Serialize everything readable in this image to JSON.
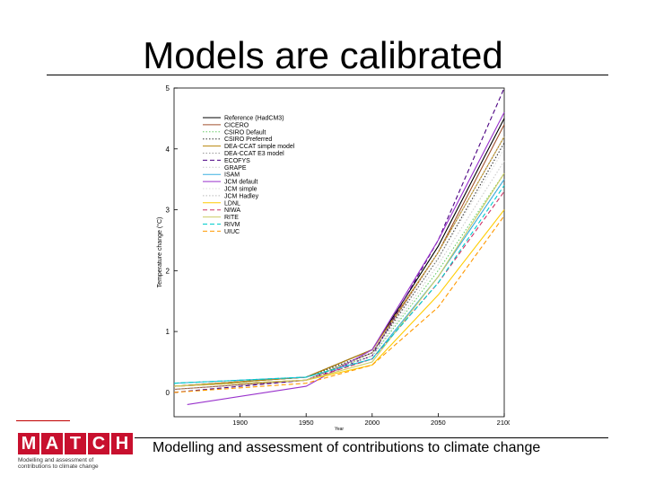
{
  "slide": {
    "title": "Models are calibrated",
    "footer": "Modelling and assessment of contributions to climate change"
  },
  "logo": {
    "letters": [
      "M",
      "A",
      "T",
      "C",
      "H"
    ],
    "line1": "Modelling and assessment of",
    "line2": "contributions to climate change",
    "color": "#c8102e"
  },
  "chart_data": {
    "type": "line",
    "title": "",
    "xlabel": "Year",
    "ylabel": "Temperature change (°C)",
    "xlim": [
      1850,
      2100
    ],
    "ylim": [
      -0.4,
      5
    ],
    "xticks": [
      1900,
      1950,
      2000,
      2050,
      2100
    ],
    "yticks": [
      0,
      1,
      2,
      3,
      4,
      5
    ],
    "grid": false,
    "legend_position": "top-left",
    "series": [
      {
        "name": "Reference (HadCM3)",
        "color": "#000000",
        "dash": "solid",
        "x": [
          1850,
          1950,
          2000,
          2050,
          2100
        ],
        "y": [
          0.1,
          0.25,
          0.7,
          2.4,
          4.5
        ]
      },
      {
        "name": "CICERO",
        "color": "#a0522d",
        "dash": "solid",
        "x": [
          1850,
          1950,
          2000,
          2050,
          2100
        ],
        "y": [
          0.05,
          0.2,
          0.65,
          2.3,
          4.4
        ]
      },
      {
        "name": "CSIRO Default",
        "color": "#66cc66",
        "dash": "dotted",
        "x": [
          1850,
          1950,
          2000,
          2050,
          2100
        ],
        "y": [
          0.15,
          0.25,
          0.6,
          2.0,
          3.6
        ]
      },
      {
        "name": "CSIRO Preferred",
        "color": "#333333",
        "dash": "dotted",
        "x": [
          1850,
          1950,
          2000,
          2050,
          2100
        ],
        "y": [
          0.1,
          0.25,
          0.65,
          2.2,
          4.1
        ]
      },
      {
        "name": "DEA-CCAT simple model",
        "color": "#b8860b",
        "dash": "solid",
        "x": [
          1850,
          1950,
          2000,
          2050,
          2100
        ],
        "y": [
          0.1,
          0.25,
          0.7,
          2.3,
          4.2
        ]
      },
      {
        "name": "DEA-CCAT E3 model",
        "color": "#999999",
        "dash": "dotted",
        "x": [
          1850,
          1950,
          2000,
          2050,
          2100
        ],
        "y": [
          0.05,
          0.2,
          0.55,
          1.9,
          3.5
        ]
      },
      {
        "name": "ECOFYS",
        "color": "#4b0082",
        "dash": "dashed",
        "x": [
          1850,
          1950,
          2000,
          2050,
          2100
        ],
        "y": [
          0.0,
          0.2,
          0.6,
          2.5,
          5.0
        ]
      },
      {
        "name": "GRAPE",
        "color": "#cccccc",
        "dash": "dotted",
        "x": [
          1850,
          1950,
          2000,
          2050,
          2100
        ],
        "y": [
          0.1,
          0.2,
          0.6,
          2.1,
          3.8
        ]
      },
      {
        "name": "ISAM",
        "color": "#3cb0e0",
        "dash": "solid",
        "x": [
          1850,
          1950,
          2000,
          2050,
          2100
        ],
        "y": [
          0.15,
          0.25,
          0.55,
          1.9,
          3.5
        ]
      },
      {
        "name": "JCM default",
        "color": "#9932cc",
        "dash": "solid",
        "x": [
          1860,
          1950,
          2000,
          2050,
          2100
        ],
        "y": [
          -0.2,
          0.1,
          0.7,
          2.5,
          4.6
        ]
      },
      {
        "name": "JCM simple",
        "color": "#dddddd",
        "dash": "dotted",
        "x": [
          1850,
          1950,
          2000,
          2050,
          2100
        ],
        "y": [
          0.1,
          0.2,
          0.6,
          2.2,
          4.0
        ]
      },
      {
        "name": "JCM Hadley",
        "color": "#bbbbbb",
        "dash": "dotted",
        "x": [
          1850,
          1950,
          2000,
          2050,
          2100
        ],
        "y": [
          0.1,
          0.2,
          0.65,
          2.3,
          4.2
        ]
      },
      {
        "name": "LDNL",
        "color": "#ffcc00",
        "dash": "solid",
        "x": [
          1850,
          1950,
          2000,
          2050,
          2100
        ],
        "y": [
          0.1,
          0.2,
          0.45,
          1.6,
          3.0
        ]
      },
      {
        "name": "NIWA",
        "color": "#cc3366",
        "dash": "dashed",
        "x": [
          1850,
          1950,
          2000,
          2050,
          2100
        ],
        "y": [
          0.1,
          0.2,
          0.55,
          1.8,
          3.3
        ]
      },
      {
        "name": "RITE",
        "color": "#cccc66",
        "dash": "solid",
        "x": [
          1850,
          1950,
          2000,
          2050,
          2100
        ],
        "y": [
          0.1,
          0.2,
          0.5,
          1.9,
          3.6
        ]
      },
      {
        "name": "RIVM",
        "color": "#00cccc",
        "dash": "dashed",
        "x": [
          1850,
          1950,
          2000,
          2050,
          2100
        ],
        "y": [
          0.15,
          0.25,
          0.55,
          1.8,
          3.4
        ]
      },
      {
        "name": "UIUC",
        "color": "#ff9900",
        "dash": "dashed",
        "x": [
          1850,
          1950,
          2000,
          2050,
          2100
        ],
        "y": [
          0.0,
          0.15,
          0.45,
          1.4,
          2.9
        ]
      }
    ]
  }
}
